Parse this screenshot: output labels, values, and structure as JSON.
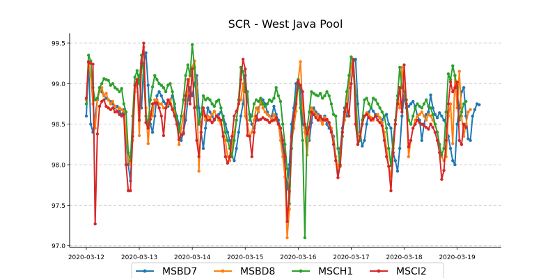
{
  "chart_data": {
    "type": "line",
    "title": "SCR - West Java Pool",
    "xlabel": "",
    "ylabel": "",
    "x_ticks": [
      "2020-03-12",
      "2020-03-13",
      "2020-03-14",
      "2020-03-15",
      "2020-03-16",
      "2020-03-17",
      "2020-03-18",
      "2020-03-19"
    ],
    "xlim": [
      "2020-03-11T16:26",
      "2020-03-19T20:00"
    ],
    "y_ticks": [
      "97.0",
      "97.5",
      "98.0",
      "98.5",
      "99.0",
      "99.5"
    ],
    "ylim": [
      96.98,
      99.62
    ],
    "grid": "y-dashed",
    "legend_position": "bottom-center",
    "series": [
      {
        "name": "MSBD7",
        "color": "#1f77b4",
        "x_start": "2020-03-12T00:00",
        "x_step_minutes": 60,
        "values": [
          98.6,
          99.26,
          98.5,
          98.4,
          98.6,
          98.8,
          98.95,
          98.9,
          98.85,
          98.82,
          98.8,
          98.78,
          98.75,
          98.7,
          98.72,
          98.66,
          98.62,
          98.68,
          98.3,
          98.0,
          97.8,
          98.4,
          98.9,
          99.02,
          99.1,
          98.7,
          99.25,
          99.38,
          98.98,
          98.5,
          98.4,
          98.6,
          98.85,
          98.9,
          98.85,
          98.78,
          98.75,
          98.72,
          98.8,
          98.85,
          98.7,
          98.6,
          98.5,
          98.3,
          98.4,
          98.55,
          98.8,
          98.95,
          98.85,
          99.0,
          99.1,
          98.7,
          98.4,
          98.2,
          98.45,
          98.7,
          98.65,
          98.6,
          98.55,
          98.6,
          98.62,
          98.65,
          98.6,
          98.5,
          98.4,
          98.3,
          98.1,
          98.05,
          98.2,
          98.4,
          98.6,
          98.75,
          99.1,
          98.8,
          98.62,
          98.5,
          98.45,
          98.55,
          98.7,
          98.75,
          98.8,
          98.75,
          98.65,
          98.6,
          98.6,
          98.72,
          98.62,
          98.55,
          98.45,
          98.2,
          97.95,
          97.7,
          98.0,
          98.5,
          98.7,
          99.0,
          99.05,
          98.95,
          98.5,
          98.45,
          98.4,
          98.3,
          98.52,
          98.7,
          98.65,
          98.62,
          98.58,
          98.55,
          98.6,
          98.5,
          98.45,
          98.42,
          98.35,
          98.1,
          97.9,
          98.2,
          98.45,
          98.7,
          98.6,
          98.95,
          99.25,
          99.28,
          99.3,
          98.75,
          98.4,
          98.23,
          98.3,
          98.5,
          98.65,
          98.7,
          98.66,
          98.62,
          98.6,
          98.58,
          98.55,
          98.6,
          98.62,
          98.5,
          98.45,
          98.15,
          98.05,
          97.92,
          98.2,
          98.6,
          98.85,
          98.7,
          98.72,
          98.75,
          98.78,
          98.72,
          98.6,
          98.55,
          98.3,
          98.5,
          98.62,
          98.65,
          98.86,
          98.7,
          98.62,
          98.58,
          98.64,
          98.6,
          98.55,
          98.5,
          98.35,
          98.2,
          98.05,
          98.0,
          98.5,
          98.7,
          98.9,
          98.95,
          98.6,
          98.32,
          98.3,
          98.6,
          98.68,
          98.75,
          98.74
        ]
      },
      {
        "name": "MSBD8",
        "color": "#ff7f0e",
        "x_start": "2020-03-12T00:00",
        "x_step_minutes": 60,
        "values": [
          98.8,
          99.26,
          99.1,
          98.75,
          98.45,
          98.8,
          98.9,
          98.95,
          98.85,
          98.88,
          98.8,
          98.75,
          98.78,
          98.72,
          98.65,
          98.7,
          98.68,
          98.66,
          98.4,
          98.05,
          98.0,
          98.3,
          98.9,
          99.05,
          98.36,
          99.28,
          99.45,
          98.7,
          98.26,
          98.65,
          98.6,
          98.8,
          98.8,
          98.75,
          98.75,
          98.7,
          98.7,
          98.75,
          98.8,
          98.7,
          98.65,
          98.55,
          98.25,
          98.45,
          98.6,
          98.75,
          98.9,
          99.1,
          99.2,
          99.28,
          98.95,
          97.92,
          98.5,
          98.65,
          98.55,
          98.6,
          98.58,
          98.62,
          98.66,
          98.6,
          98.55,
          98.5,
          98.4,
          98.3,
          98.1,
          98.05,
          98.2,
          98.4,
          98.55,
          98.75,
          98.8,
          99.0,
          98.6,
          98.5,
          98.35,
          98.4,
          98.55,
          98.7,
          98.65,
          98.8,
          98.7,
          98.65,
          98.62,
          98.6,
          98.55,
          98.62,
          98.55,
          98.5,
          98.3,
          98.1,
          97.85,
          97.1,
          97.45,
          98.3,
          98.45,
          98.66,
          99.05,
          99.27,
          98.7,
          98.4,
          98.12,
          98.45,
          98.7,
          98.66,
          98.62,
          98.6,
          98.55,
          98.5,
          98.58,
          98.55,
          98.5,
          98.45,
          98.3,
          98.1,
          97.95,
          98.1,
          98.4,
          98.55,
          98.7,
          99.0,
          99.25,
          99.1,
          98.9,
          98.4,
          98.3,
          98.5,
          98.6,
          98.64,
          98.62,
          98.58,
          98.55,
          98.6,
          98.62,
          98.58,
          98.52,
          98.4,
          98.2,
          97.98,
          97.86,
          98.2,
          98.5,
          98.8,
          98.7,
          99.2,
          98.9,
          98.75,
          98.1,
          98.3,
          98.45,
          98.55,
          98.6,
          98.62,
          98.65,
          98.6,
          98.55,
          98.62,
          98.6,
          98.55,
          98.5,
          98.4,
          98.25,
          98.1,
          98.05,
          98.1,
          98.6,
          98.75,
          98.26,
          99.1,
          98.7,
          99.15,
          98.6,
          98.35,
          98.5,
          98.65,
          98.68
        ]
      },
      {
        "name": "MSCH1",
        "color": "#2ca02c",
        "x_start": "2020-03-12T00:00",
        "x_step_minutes": 60,
        "values": [
          98.75,
          99.35,
          99.28,
          98.95,
          98.8,
          98.82,
          98.95,
          99.0,
          99.06,
          99.05,
          99.04,
          98.98,
          99.0,
          98.95,
          98.93,
          98.9,
          98.94,
          98.75,
          98.65,
          98.15,
          98.05,
          98.6,
          99.08,
          99.16,
          99.0,
          99.35,
          99.1,
          98.6,
          98.5,
          98.8,
          98.96,
          99.1,
          99.05,
          99.0,
          98.98,
          98.95,
          98.9,
          98.98,
          99.0,
          98.9,
          98.75,
          98.55,
          98.4,
          98.6,
          98.8,
          99.1,
          99.23,
          99.1,
          99.48,
          99.2,
          98.72,
          98.5,
          98.62,
          98.85,
          98.8,
          98.82,
          98.8,
          98.75,
          98.72,
          98.78,
          98.8,
          98.7,
          98.55,
          98.4,
          98.3,
          98.2,
          98.1,
          98.3,
          98.55,
          98.8,
          99.2,
          99.15,
          98.9,
          98.9,
          98.55,
          98.6,
          98.75,
          98.8,
          98.78,
          98.82,
          98.75,
          98.72,
          98.75,
          98.8,
          98.78,
          98.82,
          98.95,
          98.85,
          98.78,
          98.5,
          98.25,
          97.95,
          97.52,
          98.2,
          98.6,
          98.85,
          99.05,
          98.7,
          98.3,
          97.1,
          98.45,
          98.65,
          98.9,
          98.88,
          98.86,
          98.85,
          98.88,
          98.82,
          98.85,
          98.9,
          98.85,
          98.75,
          98.62,
          98.6,
          98.2,
          97.98,
          98.35,
          98.65,
          98.9,
          99.1,
          99.33,
          99.28,
          98.85,
          98.25,
          98.3,
          98.55,
          98.8,
          98.82,
          98.75,
          98.7,
          98.82,
          98.8,
          98.75,
          98.7,
          98.65,
          98.6,
          98.45,
          98.2,
          97.99,
          98.3,
          98.55,
          98.85,
          99.2,
          98.95,
          98.9,
          98.8,
          98.55,
          98.5,
          98.6,
          98.7,
          98.75,
          98.72,
          98.7,
          98.75,
          98.8,
          98.72,
          98.7,
          98.62,
          98.5,
          98.4,
          98.25,
          98.12,
          98.2,
          98.65,
          99.12,
          99.05,
          99.22,
          99.1,
          98.95,
          98.55,
          98.65,
          98.75,
          98.78
        ]
      },
      {
        "name": "MSCI2",
        "color": "#d62728",
        "x_start": "2020-03-12T00:00",
        "x_step_minutes": 60,
        "values": [
          98.82,
          99.27,
          99.25,
          99.24,
          97.27,
          98.38,
          98.72,
          98.78,
          98.8,
          98.72,
          98.7,
          98.68,
          98.7,
          98.65,
          98.66,
          98.62,
          98.6,
          98.62,
          98.0,
          97.68,
          97.68,
          98.35,
          98.98,
          99.05,
          98.55,
          99.25,
          99.5,
          98.52,
          98.45,
          98.56,
          98.75,
          98.76,
          98.76,
          98.7,
          98.6,
          98.36,
          98.7,
          98.8,
          98.75,
          98.68,
          98.6,
          98.5,
          98.31,
          98.37,
          98.38,
          98.85,
          99.05,
          98.75,
          99.18,
          98.7,
          98.3,
          98.1,
          98.4,
          98.7,
          98.6,
          98.55,
          98.55,
          98.52,
          98.56,
          98.6,
          98.58,
          98.55,
          98.35,
          98.1,
          98.02,
          98.1,
          98.35,
          98.6,
          98.66,
          98.75,
          99.05,
          99.3,
          99.18,
          98.36,
          98.35,
          98.1,
          98.4,
          98.6,
          98.55,
          98.56,
          98.58,
          98.56,
          98.55,
          98.52,
          98.54,
          98.55,
          98.58,
          98.5,
          98.45,
          98.3,
          98.1,
          97.3,
          97.67,
          98.35,
          98.6,
          98.75,
          99.03,
          98.98,
          98.9,
          98.5,
          98.38,
          98.46,
          98.65,
          98.62,
          98.58,
          98.55,
          98.6,
          98.56,
          98.55,
          98.56,
          98.52,
          98.4,
          98.25,
          98.05,
          97.84,
          98.0,
          98.4,
          98.65,
          98.75,
          98.6,
          99.0,
          99.3,
          98.5,
          98.25,
          98.35,
          98.5,
          98.6,
          98.62,
          98.58,
          98.55,
          98.57,
          98.6,
          98.55,
          98.52,
          98.48,
          98.3,
          98.1,
          97.98,
          97.68,
          98.15,
          98.5,
          98.75,
          98.95,
          98.65,
          99.23,
          98.75,
          98.22,
          98.3,
          98.45,
          98.5,
          98.55,
          98.52,
          98.5,
          98.48,
          98.46,
          98.44,
          98.5,
          98.46,
          98.4,
          98.3,
          98.15,
          97.82,
          97.93,
          98.3,
          98.75,
          99.02,
          98.9,
          98.95,
          99.02,
          98.3,
          98.25,
          98.5,
          98.46
        ]
      }
    ]
  }
}
